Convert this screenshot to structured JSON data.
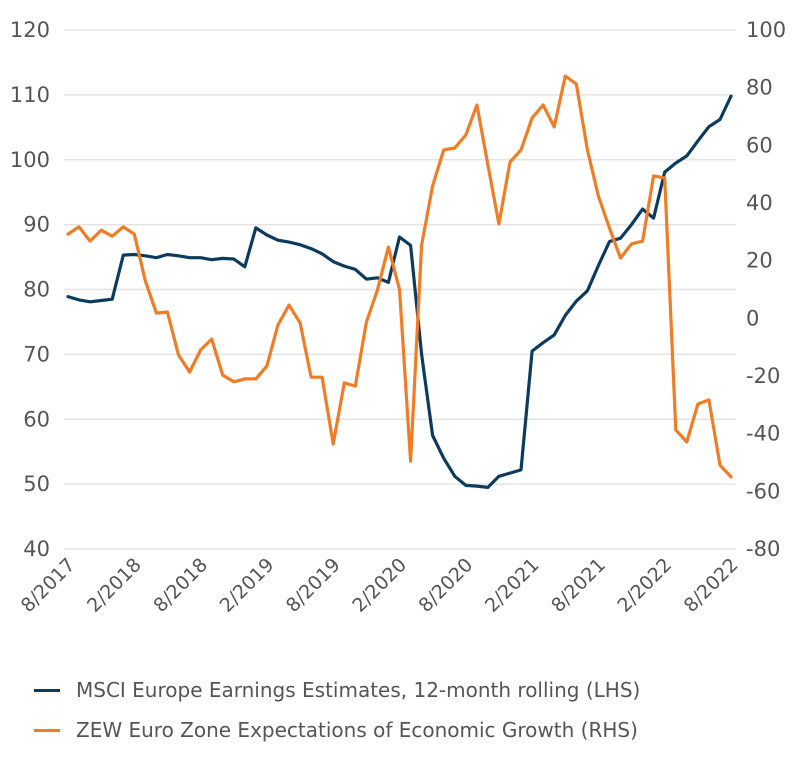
{
  "chart_data": {
    "type": "line",
    "title": "",
    "xlabel": "",
    "ylabel": "",
    "x_ticks": [
      "8/2017",
      "2/2018",
      "8/2018",
      "2/2019",
      "8/2019",
      "2/2020",
      "8/2020",
      "2/2021",
      "8/2021",
      "2/2022",
      "8/2022"
    ],
    "x_tick_rotation": "-45",
    "y_left": {
      "ticks": [
        "120",
        "110",
        "100",
        "90",
        "80",
        "70",
        "60",
        "50",
        "40"
      ],
      "range": [
        40,
        120
      ]
    },
    "y_right": {
      "ticks": [
        "100",
        "80",
        "60",
        "40",
        "20",
        "0",
        "-20",
        "-40",
        "-60",
        "-80"
      ],
      "range": [
        -80,
        100
      ]
    },
    "grid": "horizontal",
    "legend_position": "bottom-left",
    "x_range_months": [
      0,
      60
    ],
    "series": [
      {
        "name": "MSCI Europe Earnings Estimates, 12-month rolling (LHS)",
        "axis": "left",
        "color": "#0d3b5e",
        "values": [
          78.9,
          78.4,
          78.1,
          78.3,
          78.5,
          85.3,
          85.4,
          85.2,
          84.9,
          85.4,
          85.2,
          84.9,
          84.9,
          84.6,
          84.8,
          84.7,
          83.5,
          89.5,
          88.4,
          87.6,
          87.3,
          86.9,
          86.3,
          85.5,
          84.3,
          83.6,
          83.1,
          81.6,
          81.8,
          81.1,
          88.1,
          86.8,
          70.0,
          57.5,
          54.0,
          51.2,
          49.8,
          49.7,
          49.5,
          51.2,
          51.7,
          52.2,
          70.5,
          71.8,
          73.0,
          76.0,
          78.2,
          79.8,
          83.7,
          87.4,
          87.9,
          90.0,
          92.4,
          91.0,
          98.1,
          99.5,
          100.6,
          102.9,
          105.1,
          106.2,
          109.8
        ]
      },
      {
        "name": "ZEW Euro Zone Expectations of Economic Growth (RHS)",
        "axis": "right",
        "color": "#f07d26",
        "values": [
          29.2,
          31.7,
          26.8,
          30.6,
          28.5,
          31.7,
          29.2,
          13.0,
          1.8,
          2.2,
          -12.7,
          -18.6,
          -11.0,
          -7.2,
          -19.7,
          -22.0,
          -21.0,
          -21.0,
          -16.5,
          -2.3,
          4.6,
          -1.6,
          -20.4,
          -20.4,
          -43.6,
          -22.4,
          -23.5,
          -1.3,
          9.8,
          24.7,
          10.0,
          -49.5,
          25.4,
          45.9,
          58.4,
          59.1,
          63.6,
          74.0,
          53.2,
          32.7,
          54.2,
          58.4,
          69.5,
          74.0,
          66.4,
          84.0,
          81.3,
          58.4,
          42.4,
          31.3,
          20.9,
          25.8,
          26.8,
          49.4,
          48.7,
          -38.7,
          -42.9,
          -29.7,
          -28.3,
          -50.9,
          -55.0
        ]
      }
    ]
  },
  "legend": {
    "items": [
      {
        "label": "MSCI Europe Earnings Estimates, 12-month rolling (LHS)",
        "color": "#0d3b5e"
      },
      {
        "label": "ZEW Euro Zone Expectations of Economic Growth (RHS)",
        "color": "#f07d26"
      }
    ]
  }
}
